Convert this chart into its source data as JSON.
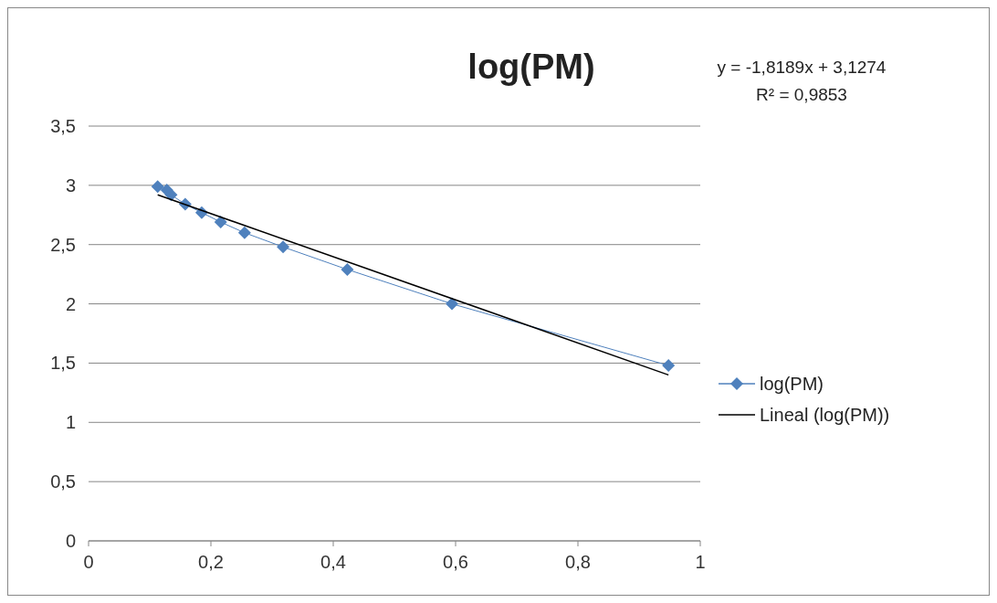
{
  "chart_data": {
    "type": "line",
    "title": "log(PM)",
    "annotations": [
      "y = -1,8189x + 3,1274",
      "R² = 0,9853"
    ],
    "series": [
      {
        "name": "log(PM)",
        "color": "#4f81bd",
        "marker": "diamond",
        "x": [
          0.113,
          0.128,
          0.135,
          0.158,
          0.185,
          0.216,
          0.255,
          0.318,
          0.423,
          0.594,
          0.948
        ],
        "values": [
          2.99,
          2.96,
          2.92,
          2.84,
          2.77,
          2.69,
          2.6,
          2.48,
          2.29,
          2.0,
          1.48
        ]
      },
      {
        "name": "Lineal (log(PM))",
        "color": "#000000",
        "marker": "none",
        "x": [
          0.113,
          0.948
        ],
        "values": [
          2.92,
          1.4
        ]
      }
    ],
    "xlim": [
      0,
      1
    ],
    "xticks": [
      0,
      {
        "value": 0.2,
        "label": "0,2"
      },
      {
        "value": 0.4,
        "label": "0,4"
      },
      {
        "value": 0.6,
        "label": "0,6"
      },
      {
        "value": 0.8,
        "label": "0,8"
      },
      1
    ],
    "ylim": [
      0,
      3.5
    ],
    "yticks": [
      0,
      {
        "value": 0.5,
        "label": "0,5"
      },
      1,
      {
        "value": 1.5,
        "label": "1,5"
      },
      2,
      {
        "value": 2.5,
        "label": "2,5"
      },
      3,
      {
        "value": 3.5,
        "label": "3,5"
      }
    ],
    "grid": "y",
    "legend": "right",
    "line_style": "solid"
  }
}
